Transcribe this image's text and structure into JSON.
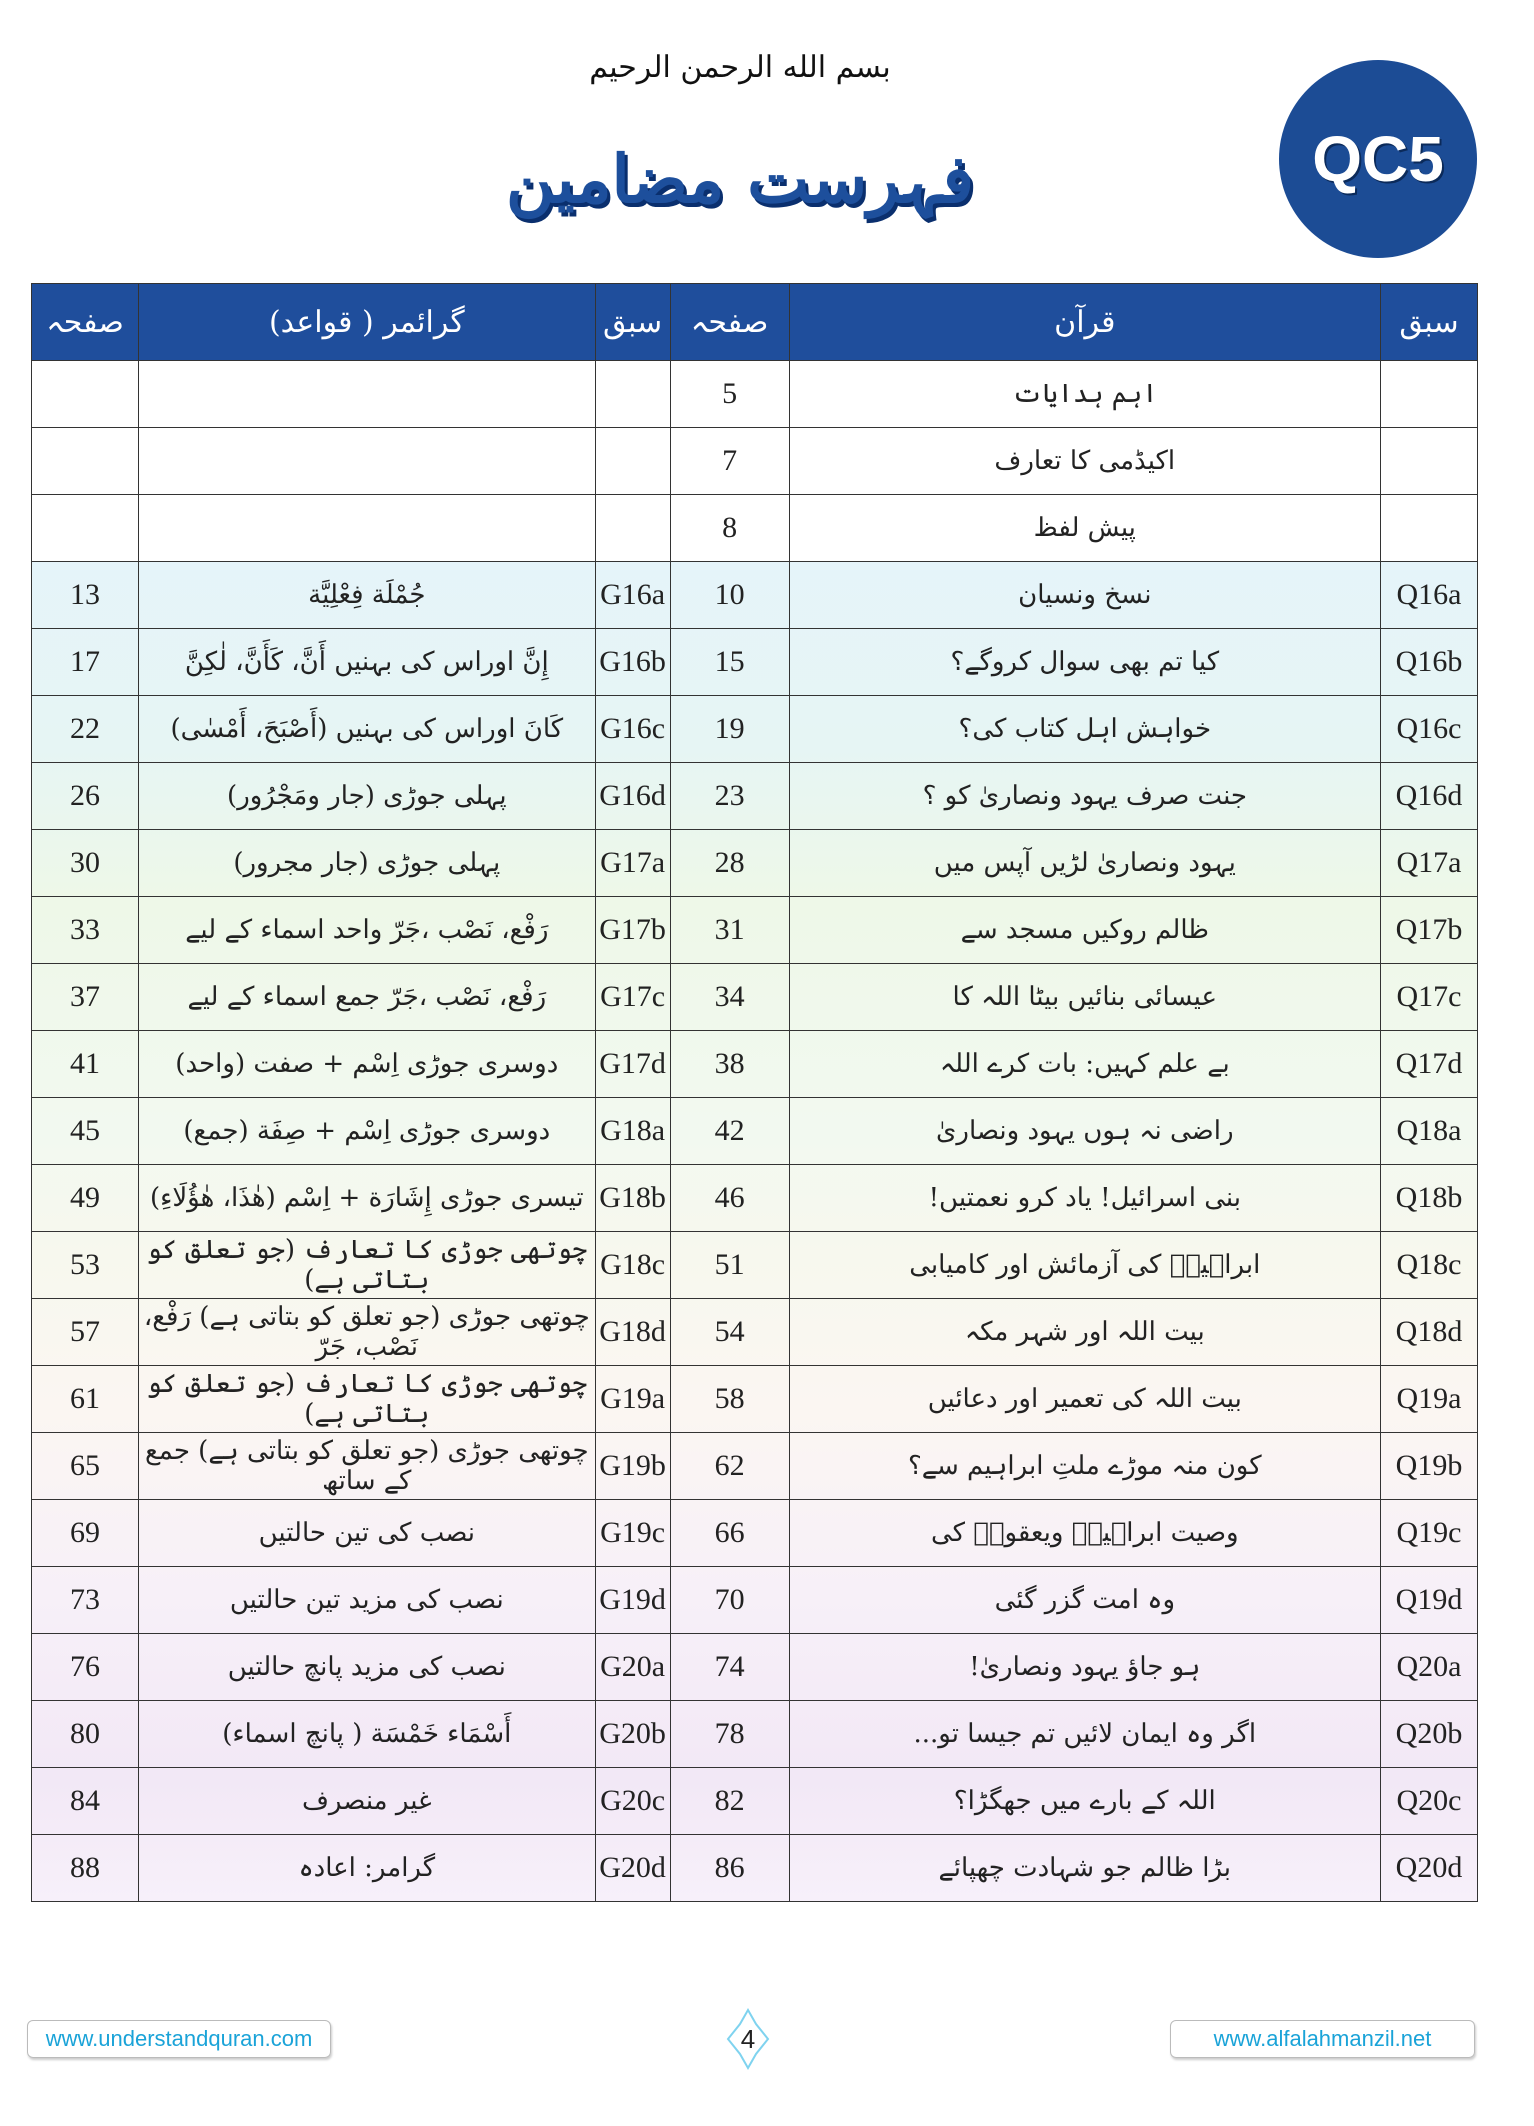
{
  "header": {
    "bismillah": "بسم الله الرحمن الرحيم",
    "title": "فہرست مضامین",
    "badge": "QC5"
  },
  "table": {
    "columns": [
      "سبق",
      "قرآن",
      "صفحہ",
      "سبق",
      "گرائمر ( قواعد)",
      "صفحہ"
    ],
    "rows": [
      {
        "q_lesson": "",
        "quran": "اہم ہدایات",
        "q_page": "5",
        "g_lesson": "",
        "grammar": "",
        "g_page": ""
      },
      {
        "q_lesson": "",
        "quran": "اکیڈمی کا تعارف",
        "q_page": "7",
        "g_lesson": "",
        "grammar": "",
        "g_page": ""
      },
      {
        "q_lesson": "",
        "quran": "پیش لفظ",
        "q_page": "8",
        "g_lesson": "",
        "grammar": "",
        "g_page": ""
      },
      {
        "q_lesson": "Q16a",
        "quran": "نسخ ونسیان",
        "q_page": "10",
        "g_lesson": "G16a",
        "grammar": "جُمْلَة فِعْلِيَّة",
        "g_page": "13"
      },
      {
        "q_lesson": "Q16b",
        "quran": "کیا تم بھی سوال کروگے؟",
        "q_page": "15",
        "g_lesson": "G16b",
        "grammar": "إِنَّ اوراس کی بہنیں أَنَّ، كَأَنَّ، لٰكِنَّ",
        "g_page": "17"
      },
      {
        "q_lesson": "Q16c",
        "quran": "خواہش اہل کتاب کی؟",
        "q_page": "19",
        "g_lesson": "G16c",
        "grammar": "كَانَ اوراس کی بہنیں (أَصْبَحَ، أَمْسٰى)",
        "g_page": "22"
      },
      {
        "q_lesson": "Q16d",
        "quran": "جنت صرف یہود ونصاریٰ کو ؟",
        "q_page": "23",
        "g_lesson": "G16d",
        "grammar": "پہلی جوڑی (جار ومَجْرُور)",
        "g_page": "26"
      },
      {
        "q_lesson": "Q17a",
        "quran": "یہود ونصاریٰ لڑیں آپس میں",
        "q_page": "28",
        "g_lesson": "G17a",
        "grammar": "پہلی جوڑی (جار مجرور)",
        "g_page": "30"
      },
      {
        "q_lesson": "Q17b",
        "quran": "ظالم روکیں مسجد سے",
        "q_page": "31",
        "g_lesson": "G17b",
        "grammar": "رَفْع، نَصْب ،جَرّ واحد اسماء کے لیے",
        "g_page": "33"
      },
      {
        "q_lesson": "Q17c",
        "quran": "عیسائی بنائیں بیٹا اللہ کا",
        "q_page": "34",
        "g_lesson": "G17c",
        "grammar": "رَفْع، نَصْب ،جَرّ جمع اسماء کے لیے",
        "g_page": "37"
      },
      {
        "q_lesson": "Q17d",
        "quran": "بے علم کہیں: بات کرے اللہ",
        "q_page": "38",
        "g_lesson": "G17d",
        "grammar": "دوسری جوڑی اِسْم + صفت (واحد)",
        "g_page": "41"
      },
      {
        "q_lesson": "Q18a",
        "quran": "راضی نہ ہوں یہود ونصاریٰ",
        "q_page": "42",
        "g_lesson": "G18a",
        "grammar": "دوسری جوڑی اِسْم + صِفَة (جمع)",
        "g_page": "45"
      },
      {
        "q_lesson": "Q18b",
        "quran": "بنی اسرائیل! یاد کرو نعمتیں!",
        "q_page": "46",
        "g_lesson": "G18b",
        "grammar": "تیسری جوڑی إِشَارَة + اِسْم (هٰذَا، هٰؤُلَاءِ)",
        "g_page": "49"
      },
      {
        "q_lesson": "Q18c",
        "quran": "ابراہیمؑ کی آزمائش اور کامیابی",
        "q_page": "51",
        "g_lesson": "G18c",
        "grammar": "چوتھی جوڑی کا تعارف (جو تعلق کو بتاتی ہے)",
        "g_page": "53"
      },
      {
        "q_lesson": "Q18d",
        "quran": "بیت اللہ اور شہر مکہ",
        "q_page": "54",
        "g_lesson": "G18d",
        "grammar": "چوتھی جوڑی (جو تعلق کو بتاتی ہے) رَفْع، نَصْب، جَرّ",
        "g_page": "57"
      },
      {
        "q_lesson": "Q19a",
        "quran": "بیت اللہ کی تعمیر اور دعائیں",
        "q_page": "58",
        "g_lesson": "G19a",
        "grammar": "چوتھی جوڑی کا تعارف (جو تعلق کو بتاتی ہے)",
        "g_page": "61"
      },
      {
        "q_lesson": "Q19b",
        "quran": "کون منہ موڑے ملتِ ابراہیم سے؟",
        "q_page": "62",
        "g_lesson": "G19b",
        "grammar": "چوتھی جوڑی (جو تعلق کو بتاتی ہے) جمع کے ساتھ",
        "g_page": "65"
      },
      {
        "q_lesson": "Q19c",
        "quran": "وصیت ابراہیمؑ ویعقوبؑ کی",
        "q_page": "66",
        "g_lesson": "G19c",
        "grammar": "نصب کی تین حالتیں",
        "g_page": "69"
      },
      {
        "q_lesson": "Q19d",
        "quran": "وہ امت گزر گئی",
        "q_page": "70",
        "g_lesson": "G19d",
        "grammar": "نصب کی مزید تین حالتیں",
        "g_page": "73"
      },
      {
        "q_lesson": "Q20a",
        "quran": "ہو جاؤ یہود ونصاریٰ!",
        "q_page": "74",
        "g_lesson": "G20a",
        "grammar": "نصب کی مزید پانچ حالتیں",
        "g_page": "76"
      },
      {
        "q_lesson": "Q20b",
        "quran": "اگر وہ ایمان لائیں تم جیسا تو...",
        "q_page": "78",
        "g_lesson": "G20b",
        "grammar": "أَسْمَاء خَمْسَة ( پانچ اسماء)",
        "g_page": "80"
      },
      {
        "q_lesson": "Q20c",
        "quran": "اللہ کے بارے میں جھگڑا؟",
        "q_page": "82",
        "g_lesson": "G20c",
        "grammar": "غیر منصرف",
        "g_page": "84"
      },
      {
        "q_lesson": "Q20d",
        "quran": "بڑا ظالم جو شہادت چھپائے",
        "q_page": "86",
        "g_lesson": "G20d",
        "grammar": "گرامر: اعادہ",
        "g_page": "88"
      }
    ]
  },
  "footer": {
    "left_link": "www.understandquran.com",
    "page_number": "4",
    "right_link": "www.alfalahmanzil.net"
  },
  "colors": {
    "brand_blue": "#1f4e9c",
    "link_cyan": "#1aa3d8"
  }
}
